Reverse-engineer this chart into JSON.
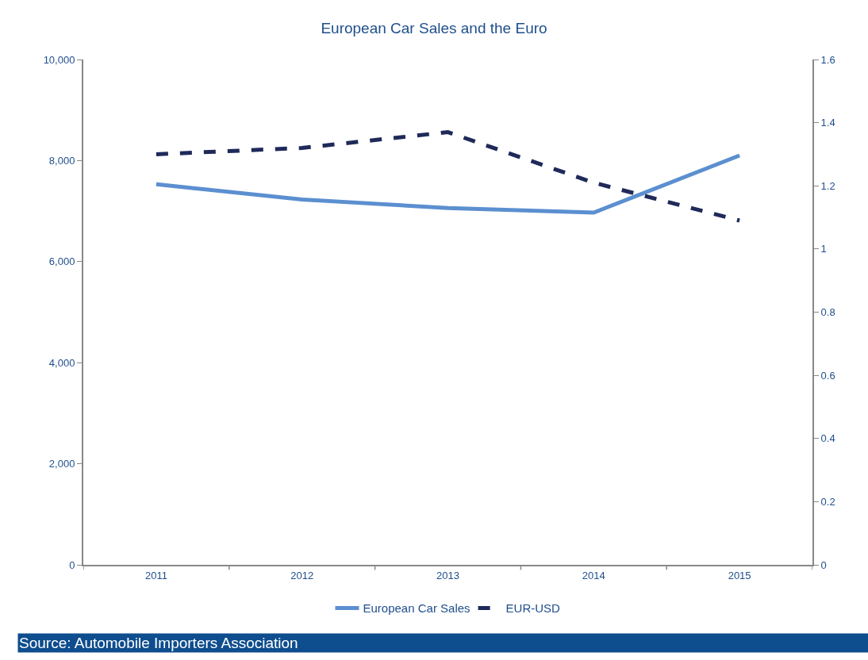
{
  "chart_data": {
    "type": "line",
    "title": "European Car Sales and the Euro",
    "categories": [
      "2011",
      "2012",
      "2013",
      "2014",
      "2015"
    ],
    "series": [
      {
        "name": "European Car Sales",
        "color": "#5b8fd0",
        "values": [
          7530,
          7230,
          7060,
          6970,
          8100
        ],
        "line_style": "solid"
      },
      {
        "name": "EUR-USD",
        "color": "#1f2a5a",
        "values": [
          1.3,
          1.32,
          1.37,
          1.21,
          1.09
        ],
        "axis": "y2",
        "line_style": "dashed"
      }
    ],
    "ylim": [
      0,
      10000
    ],
    "yticks": [
      {
        "value": 0,
        "label": "0"
      },
      {
        "value": 2000,
        "label": "2,000"
      },
      {
        "value": 4000,
        "label": "4,000"
      },
      {
        "value": 6000,
        "label": "6,000"
      },
      {
        "value": 8000,
        "label": "8,000"
      },
      {
        "value": 10000,
        "label": "10,000"
      }
    ],
    "y2lim": [
      0,
      1.6
    ],
    "y2ticks": [
      0,
      0.2,
      0.4,
      0.6,
      0.8,
      1,
      1.2,
      1.4,
      1.6
    ],
    "legend": "bottom",
    "marker": "none",
    "annotations": [
      "Source: Automobile Importers Association"
    ]
  }
}
